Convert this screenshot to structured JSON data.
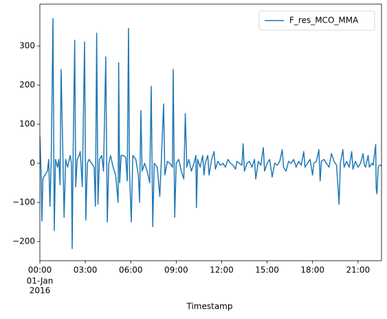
{
  "chart_data": {
    "type": "line",
    "xlabel": "Timestamp",
    "x_date_label": [
      "01-Jan",
      "2016"
    ],
    "legend": "upper right",
    "series": [
      {
        "name": "F_res_MCO_MMA",
        "color": "#1f77b4",
        "x": [
          "00:00",
          "00:05",
          "00:08",
          "00:12",
          "00:20",
          "00:30",
          "00:35",
          "00:40",
          "00:45",
          "00:52",
          "00:57",
          "01:02",
          "01:10",
          "01:15",
          "01:20",
          "01:24",
          "01:30",
          "01:36",
          "01:42",
          "01:50",
          "02:00",
          "02:05",
          "02:08",
          "02:12",
          "02:18",
          "02:22",
          "02:28",
          "02:35",
          "02:40",
          "02:48",
          "02:57",
          "03:02",
          "03:08",
          "03:15",
          "03:25",
          "03:35",
          "03:40",
          "03:45",
          "03:50",
          "03:56",
          "04:05",
          "04:12",
          "04:21",
          "04:27",
          "04:33",
          "04:40",
          "04:50",
          "05:00",
          "05:10",
          "05:12",
          "05:16",
          "05:22",
          "05:30",
          "05:40",
          "05:46",
          "05:51",
          "05:55",
          "06:02",
          "06:08",
          "06:20",
          "06:30",
          "06:35",
          "06:40",
          "06:45",
          "06:55",
          "07:05",
          "07:15",
          "07:21",
          "07:27",
          "07:33",
          "07:45",
          "07:55",
          "08:00",
          "08:10",
          "08:15",
          "08:25",
          "08:35",
          "08:45",
          "08:48",
          "08:54",
          "09:00",
          "09:10",
          "09:20",
          "09:30",
          "09:36",
          "09:42",
          "09:50",
          "10:00",
          "10:10",
          "10:18",
          "10:20",
          "10:25",
          "10:35",
          "10:45",
          "10:50",
          "10:55",
          "11:05",
          "11:10",
          "11:20",
          "11:30",
          "11:35",
          "11:45",
          "11:55",
          "12:05",
          "12:15",
          "12:25",
          "12:35",
          "12:45",
          "12:55",
          "13:00",
          "13:10",
          "13:20",
          "13:25",
          "13:30",
          "13:40",
          "13:50",
          "14:00",
          "14:10",
          "14:15",
          "14:25",
          "14:35",
          "14:45",
          "14:50",
          "15:00",
          "15:10",
          "15:20",
          "15:30",
          "15:40",
          "15:50",
          "16:00",
          "16:05",
          "16:15",
          "16:25",
          "16:35",
          "16:45",
          "16:55",
          "17:05",
          "17:15",
          "17:25",
          "17:30",
          "17:40",
          "17:50",
          "18:00",
          "18:05",
          "18:15",
          "18:25",
          "18:30",
          "18:35",
          "18:45",
          "18:55",
          "19:05",
          "19:15",
          "19:25",
          "19:35",
          "19:45",
          "19:50",
          "20:00",
          "20:05",
          "20:15",
          "20:25",
          "20:35",
          "20:40",
          "20:50",
          "21:00",
          "21:10",
          "21:20",
          "21:25",
          "21:30",
          "21:40",
          "21:45",
          "21:55",
          "22:00",
          "22:10",
          "22:12",
          "22:15",
          "22:20",
          "22:25",
          "22:33"
        ],
        "values": [
          70,
          -30,
          -148,
          -40,
          -30,
          -20,
          10,
          -110,
          10,
          370,
          -172,
          10,
          -10,
          10,
          -55,
          240,
          60,
          -138,
          10,
          -10,
          20,
          0,
          -218,
          35,
          315,
          -60,
          10,
          20,
          30,
          -60,
          310,
          -145,
          0,
          10,
          0,
          -10,
          -110,
          333,
          -105,
          10,
          20,
          -20,
          272,
          -150,
          0,
          20,
          -10,
          -30,
          -100,
          257,
          -50,
          20,
          20,
          15,
          -45,
          345,
          -20,
          -150,
          20,
          10,
          -30,
          -100,
          135,
          -20,
          0,
          -20,
          -50,
          197,
          -162,
          0,
          -10,
          -85,
          -10,
          152,
          -30,
          5,
          0,
          -10,
          240,
          -138,
          0,
          10,
          -20,
          -40,
          127,
          -10,
          10,
          -20,
          0,
          20,
          -113,
          10,
          -10,
          20,
          -30,
          0,
          20,
          -30,
          10,
          30,
          -15,
          5,
          -5,
          0,
          -10,
          10,
          0,
          -5,
          -15,
          5,
          0,
          -5,
          50,
          -20,
          0,
          5,
          -10,
          10,
          -40,
          5,
          -5,
          40,
          -20,
          0,
          10,
          -35,
          0,
          -5,
          5,
          35,
          -10,
          -20,
          5,
          0,
          10,
          -10,
          5,
          -5,
          30,
          -10,
          0,
          10,
          -30,
          0,
          5,
          35,
          -45,
          5,
          10,
          0,
          -10,
          25,
          5,
          -5,
          -105,
          0,
          35,
          -10,
          5,
          -10,
          30,
          -15,
          5,
          -10,
          0,
          25,
          -5,
          -10,
          20,
          -10,
          0,
          -5,
          48,
          -65,
          -78,
          -10,
          -5,
          -5
        ]
      }
    ],
    "xlim": [
      "00:00",
      "22:33"
    ],
    "xticks": [
      "00:00",
      "03:00",
      "06:00",
      "09:00",
      "12:00",
      "15:00",
      "18:00",
      "21:00"
    ],
    "ylim": [
      -249,
      407
    ],
    "yticks": [
      {
        "value": -200,
        "label": "−200"
      },
      {
        "value": -100,
        "label": "−100"
      },
      0,
      100,
      200,
      300
    ]
  }
}
